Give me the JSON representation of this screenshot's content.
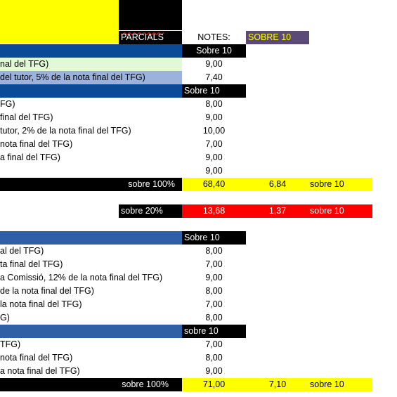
{
  "header": {
    "parcials": "PARCIALS",
    "notes": "NOTES:",
    "sobre10": "SOBRE 10"
  },
  "section1": {
    "sobre": "Sobre 10",
    "rows": [
      {
        "label": "nal del TFG)",
        "note": "9,00"
      },
      {
        "label": "del tutor, 5% de la nota final del TFG)",
        "note": "7,40"
      }
    ]
  },
  "section2": {
    "sobre": "Sobre 10",
    "rows": [
      {
        "label": "FG)",
        "note": "8,00"
      },
      {
        "label": "final del TFG)",
        "note": "9,00"
      },
      {
        "label": "tutor, 2% de la nota final del TFG)",
        "note": "10,00"
      },
      {
        "label": "nota final del TFG)",
        "note": "7,00"
      },
      {
        "label": "a final del TFG)",
        "note": "9,00"
      },
      {
        "label": "",
        "note": "9,00"
      }
    ]
  },
  "total1": {
    "label": "sobre 100%",
    "value": "68,40",
    "score": "6,84",
    "sobre": "sobre 10"
  },
  "partial1": {
    "label": "sobre 20%",
    "value": "13,68",
    "score": "1,37",
    "sobre": "sobre 10"
  },
  "section3": {
    "sobre": "Sobre 10",
    "rows": [
      {
        "label": "al del TFG)",
        "note": "8,00"
      },
      {
        "label": "ta final del TFG)",
        "note": "7,00"
      },
      {
        "label": "a Comissió, 12% de la nota final del TFG)",
        "note": "9,00"
      },
      {
        "label": "de la nota final del TFG)",
        "note": "8,00"
      },
      {
        "label": "la nota final del TFG)",
        "note": "7,00"
      },
      {
        "label": "G)",
        "note": "8,00"
      }
    ]
  },
  "section4": {
    "sobre": "sobre 10",
    "rows": [
      {
        "label": "TFG)",
        "note": "7,00"
      },
      {
        "label": "nota final del TFG)",
        "note": "8,00"
      },
      {
        "label": "a nota final del TFG)",
        "note": "9,00"
      }
    ]
  },
  "total2": {
    "label": "sobre 100%",
    "value": "71,00",
    "score": "7,10",
    "sobre": "sobre 10"
  }
}
